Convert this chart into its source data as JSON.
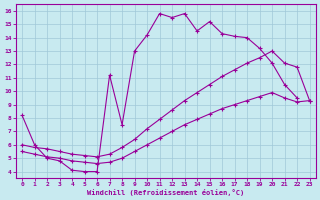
{
  "xlabel": "Windchill (Refroidissement éolien,°C)",
  "bg_color": "#c8eaf0",
  "grid_color": "#a0c8d8",
  "line_color": "#990099",
  "xlim": [
    -0.5,
    23.5
  ],
  "ylim": [
    3.5,
    16.5
  ],
  "xticks": [
    0,
    1,
    2,
    3,
    4,
    5,
    6,
    7,
    8,
    9,
    10,
    11,
    12,
    13,
    14,
    15,
    16,
    17,
    18,
    19,
    20,
    21,
    22,
    23
  ],
  "yticks": [
    4,
    5,
    6,
    7,
    8,
    9,
    10,
    11,
    12,
    13,
    14,
    15,
    16
  ],
  "series": [
    {
      "x": [
        0,
        1,
        2,
        3,
        4,
        5,
        6,
        7,
        8,
        9,
        10,
        11,
        12,
        13,
        14,
        15,
        16,
        17,
        18,
        19,
        20,
        21,
        22
      ],
      "y": [
        8.2,
        6.0,
        5.0,
        4.8,
        4.1,
        4.0,
        4.0,
        11.2,
        7.5,
        13.0,
        14.2,
        15.8,
        15.5,
        15.8,
        14.5,
        15.2,
        14.3,
        14.1,
        14.0,
        13.2,
        12.1,
        10.5,
        9.5
      ]
    },
    {
      "x": [
        0,
        1,
        2,
        3,
        4,
        5,
        6,
        7,
        8,
        9,
        10,
        11,
        12,
        13,
        14,
        15,
        16,
        17,
        18,
        19,
        20,
        21,
        22,
        23
      ],
      "y": [
        6.0,
        5.8,
        5.7,
        5.5,
        5.3,
        5.2,
        5.1,
        5.3,
        5.8,
        6.4,
        7.2,
        7.9,
        8.6,
        9.3,
        9.9,
        10.5,
        11.1,
        11.6,
        12.1,
        12.5,
        13.0,
        12.1,
        11.8,
        9.3
      ]
    },
    {
      "x": [
        0,
        1,
        2,
        3,
        4,
        5,
        6,
        7,
        8,
        9,
        10,
        11,
        12,
        13,
        14,
        15,
        16,
        17,
        18,
        19,
        20,
        21,
        22,
        23
      ],
      "y": [
        5.5,
        5.3,
        5.1,
        5.0,
        4.8,
        4.7,
        4.6,
        4.7,
        5.0,
        5.5,
        6.0,
        6.5,
        7.0,
        7.5,
        7.9,
        8.3,
        8.7,
        9.0,
        9.3,
        9.6,
        9.9,
        9.5,
        9.2,
        9.3
      ]
    }
  ]
}
